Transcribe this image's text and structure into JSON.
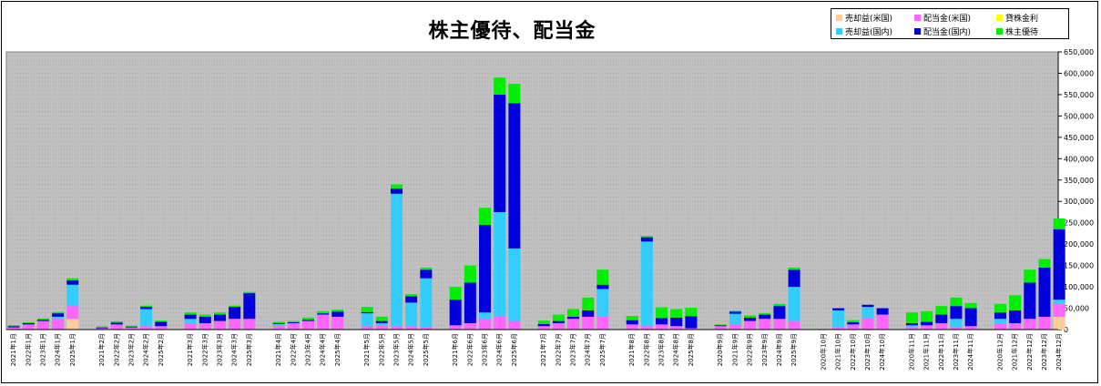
{
  "chart_data": {
    "type": "bar",
    "stacked": true,
    "title": "株主優待、配当金",
    "legend_position": "top-right",
    "grid": true,
    "background_color": "#c0c0c0",
    "ylim": [
      0,
      650000
    ],
    "y_ticks": [
      "0",
      "50,000",
      "100,000",
      "150,000",
      "200,000",
      "250,000",
      "300,000",
      "350,000",
      "400,000",
      "450,000",
      "500,000",
      "550,000",
      "600,000",
      "650,000"
    ],
    "legend": [
      {
        "label": "売却益(米国)",
        "series": "sale_us"
      },
      {
        "label": "配当金(米国)",
        "series": "div_us"
      },
      {
        "label": "貸株金利",
        "series": "lend"
      },
      {
        "label": "売却益(国内)",
        "series": "sale_jp"
      },
      {
        "label": "配当金(国内)",
        "series": "div_jp"
      },
      {
        "label": "株主優待",
        "series": "yutai"
      }
    ],
    "series_meta": [
      {
        "key": "sale_us",
        "color": "#ffcc99"
      },
      {
        "key": "div_us",
        "color": "#ff66ff"
      },
      {
        "key": "lend",
        "color": "#ffff00"
      },
      {
        "key": "sale_jp",
        "color": "#33ccff"
      },
      {
        "key": "div_jp",
        "color": "#0000dd"
      },
      {
        "key": "yutai",
        "color": "#00ee00"
      }
    ],
    "groups": [
      {
        "bars": [
          {
            "label": "2021年1月",
            "values": [
              0,
              5000,
              0,
              0,
              3000,
              2000
            ]
          },
          {
            "label": "2022年1月",
            "values": [
              0,
              12000,
              0,
              0,
              3000,
              2000
            ]
          },
          {
            "label": "2023年1月",
            "values": [
              0,
              20000,
              0,
              0,
              3000,
              3000
            ]
          },
          {
            "label": "2024年1月",
            "values": [
              0,
              25000,
              0,
              5000,
              8000,
              3000
            ]
          },
          {
            "label": "2025年1月",
            "values": [
              25000,
              30000,
              0,
              50000,
              10000,
              5000
            ]
          }
        ]
      },
      {
        "bars": [
          {
            "label": "2021年2月",
            "values": [
              0,
              3000,
              0,
              0,
              2000,
              2000
            ]
          },
          {
            "label": "2022年2月",
            "values": [
              0,
              12000,
              0,
              0,
              4000,
              3000
            ]
          },
          {
            "label": "2023年2月",
            "values": [
              0,
              5000,
              0,
              0,
              2000,
              2000
            ]
          },
          {
            "label": "2024年2月",
            "values": [
              0,
              8000,
              0,
              40000,
              5000,
              3000
            ]
          },
          {
            "label": "2025年2月",
            "values": [
              0,
              8000,
              0,
              0,
              10000,
              3000
            ]
          }
        ]
      },
      {
        "bars": [
          {
            "label": "2021年3月",
            "values": [
              0,
              15000,
              0,
              10000,
              10000,
              5000
            ]
          },
          {
            "label": "2022年3月",
            "values": [
              0,
              15000,
              0,
              0,
              15000,
              5000
            ]
          },
          {
            "label": "2023年3月",
            "values": [
              0,
              20000,
              0,
              0,
              15000,
              5000
            ]
          },
          {
            "label": "2024年3月",
            "values": [
              0,
              25000,
              0,
              0,
              28000,
              3000
            ]
          },
          {
            "label": "2025年3月",
            "values": [
              0,
              25000,
              0,
              0,
              60000,
              3000
            ]
          }
        ]
      },
      {
        "bars": [
          {
            "label": "2021年4月",
            "values": [
              0,
              8000,
              0,
              5000,
              2000,
              3000
            ]
          },
          {
            "label": "2022年4月",
            "values": [
              0,
              15000,
              0,
              0,
              2000,
              3000
            ]
          },
          {
            "label": "2023年4月",
            "values": [
              0,
              20000,
              0,
              0,
              3000,
              5000
            ]
          },
          {
            "label": "2024年4月",
            "values": [
              0,
              35000,
              0,
              0,
              3000,
              5000
            ]
          },
          {
            "label": "2025年4月",
            "values": [
              0,
              30000,
              0,
              0,
              12000,
              5000
            ]
          }
        ]
      },
      {
        "bars": [
          {
            "label": "2021年5月",
            "values": [
              0,
              8000,
              0,
              30000,
              3000,
              12000
            ]
          },
          {
            "label": "2022年5月",
            "values": [
              0,
              10000,
              0,
              5000,
              5000,
              10000
            ]
          },
          {
            "label": "2023年5月",
            "values": [
              0,
              8000,
              0,
              310000,
              12000,
              10000
            ]
          },
          {
            "label": "2024年5月",
            "values": [
              0,
              8000,
              0,
              55000,
              15000,
              5000
            ]
          },
          {
            "label": "2025年5月",
            "values": [
              0,
              5000,
              0,
              115000,
              20000,
              5000
            ]
          }
        ]
      },
      {
        "bars": [
          {
            "label": "2021年6月",
            "values": [
              0,
              10000,
              0,
              0,
              60000,
              30000
            ]
          },
          {
            "label": "2022年6月",
            "values": [
              0,
              15000,
              0,
              0,
              95000,
              40000
            ]
          },
          {
            "label": "2023年6月",
            "values": [
              0,
              25000,
              0,
              15000,
              205000,
              40000
            ]
          },
          {
            "label": "2024年6月",
            "values": [
              0,
              30000,
              0,
              245000,
              275000,
              40000
            ]
          },
          {
            "label": "2025年6月",
            "values": [
              0,
              20000,
              0,
              170000,
              340000,
              45000
            ]
          }
        ]
      },
      {
        "bars": [
          {
            "label": "2021年7月",
            "values": [
              0,
              8000,
              0,
              0,
              5000,
              8000
            ]
          },
          {
            "label": "2022年7月",
            "values": [
              0,
              15000,
              0,
              0,
              5000,
              15000
            ]
          },
          {
            "label": "2023年7月",
            "values": [
              0,
              25000,
              0,
              0,
              5000,
              18000
            ]
          },
          {
            "label": "2024年7月",
            "values": [
              0,
              30000,
              0,
              0,
              15000,
              30000
            ]
          },
          {
            "label": "2025年7月",
            "values": [
              0,
              30000,
              0,
              65000,
              10000,
              35000
            ]
          }
        ]
      },
      {
        "bars": [
          {
            "label": "2021年8月",
            "values": [
              0,
              12000,
              0,
              0,
              10000,
              10000
            ]
          },
          {
            "label": "2022年8月",
            "values": [
              0,
              8000,
              0,
              198000,
              10000,
              3000
            ]
          },
          {
            "label": "2023年8月",
            "values": [
              0,
              12000,
              0,
              0,
              15000,
              25000
            ]
          },
          {
            "label": "2024年8月",
            "values": [
              0,
              8000,
              0,
              0,
              20000,
              20000
            ]
          },
          {
            "label": "2025年8月",
            "values": [
              0,
              3000,
              0,
              0,
              28000,
              20000
            ]
          }
        ]
      },
      {
        "bars": [
          {
            "label": "2020年9月",
            "values": [
              0,
              8000,
              0,
              0,
              2000,
              2000
            ]
          },
          {
            "label": "2021年9月",
            "values": [
              0,
              12000,
              0,
              25000,
              5000,
              2000
            ]
          },
          {
            "label": "2022年9月",
            "values": [
              0,
              20000,
              0,
              0,
              8000,
              5000
            ]
          },
          {
            "label": "2023年9月",
            "values": [
              0,
              25000,
              0,
              0,
              10000,
              3000
            ]
          },
          {
            "label": "2024年9月",
            "values": [
              0,
              25000,
              0,
              0,
              30000,
              5000
            ]
          },
          {
            "label": "2025年9月",
            "values": [
              0,
              20000,
              0,
              80000,
              40000,
              5000
            ]
          }
        ]
      },
      {
        "bars": [
          {
            "label": "2020年10月",
            "values": [
              0,
              0,
              0,
              0,
              0,
              0
            ]
          },
          {
            "label": "2021年10月",
            "values": [
              0,
              5000,
              0,
              40000,
              5000,
              0
            ]
          },
          {
            "label": "2022年10月",
            "values": [
              0,
              12000,
              0,
              0,
              5000,
              5000
            ]
          },
          {
            "label": "2023年10月",
            "values": [
              0,
              28000,
              0,
              25000,
              5000,
              0
            ]
          },
          {
            "label": "2024年10月",
            "values": [
              0,
              35000,
              0,
              0,
              15000,
              0
            ]
          }
        ]
      },
      {
        "bars": [
          {
            "label": "2020年11月",
            "values": [
              0,
              5000,
              0,
              5000,
              5000,
              25000
            ]
          },
          {
            "label": "2021年11月",
            "values": [
              0,
              10000,
              0,
              0,
              8000,
              25000
            ]
          },
          {
            "label": "2022年11月",
            "values": [
              0,
              15000,
              0,
              0,
              20000,
              20000
            ]
          },
          {
            "label": "2023年11月",
            "values": [
              0,
              5000,
              0,
              20000,
              30000,
              20000
            ]
          },
          {
            "label": "2024年11月",
            "values": [
              0,
              8000,
              0,
              0,
              42000,
              12000
            ]
          }
        ]
      },
      {
        "bars": [
          {
            "label": "2020年12月",
            "values": [
              0,
              15000,
              0,
              10000,
              15000,
              20000
            ]
          },
          {
            "label": "2021年12月",
            "values": [
              0,
              15000,
              0,
              0,
              30000,
              35000
            ]
          },
          {
            "label": "2022年12月",
            "values": [
              0,
              25000,
              0,
              0,
              85000,
              30000
            ]
          },
          {
            "label": "2023年12月",
            "values": [
              0,
              30000,
              0,
              0,
              115000,
              20000
            ]
          },
          {
            "label": "2024年12月",
            "values": [
              30000,
              30000,
              0,
              10000,
              165000,
              25000
            ]
          }
        ]
      }
    ]
  }
}
